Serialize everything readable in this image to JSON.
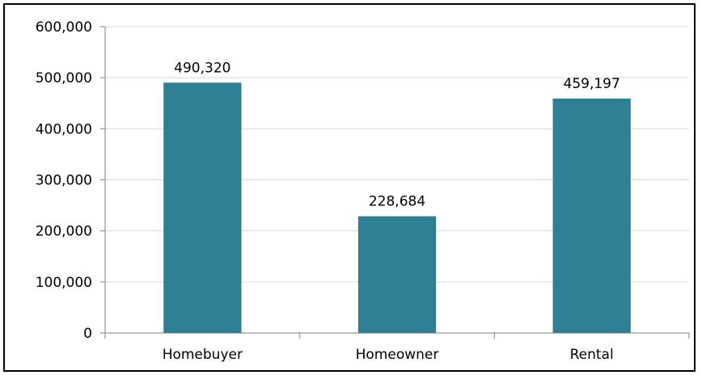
{
  "chart_data": {
    "type": "bar",
    "title": "",
    "xlabel": "",
    "ylabel": "",
    "categories": [
      "Homebuyer",
      "Homeowner",
      "Rental"
    ],
    "values": [
      490320,
      228684,
      459197
    ],
    "data_labels": [
      "490,320",
      "228,684",
      "459,197"
    ],
    "ylim": [
      0,
      600000
    ],
    "y_ticks": [
      0,
      100000,
      200000,
      300000,
      400000,
      500000,
      600000
    ],
    "y_tick_labels": [
      "0",
      "100,000",
      "200,000",
      "300,000",
      "400,000",
      "500,000",
      "600,000"
    ],
    "grid": true,
    "legend": "none",
    "bar_color": "#2e7f93",
    "grid_color": "#d9d9d9",
    "axis_color": "#7f7f7f"
  }
}
